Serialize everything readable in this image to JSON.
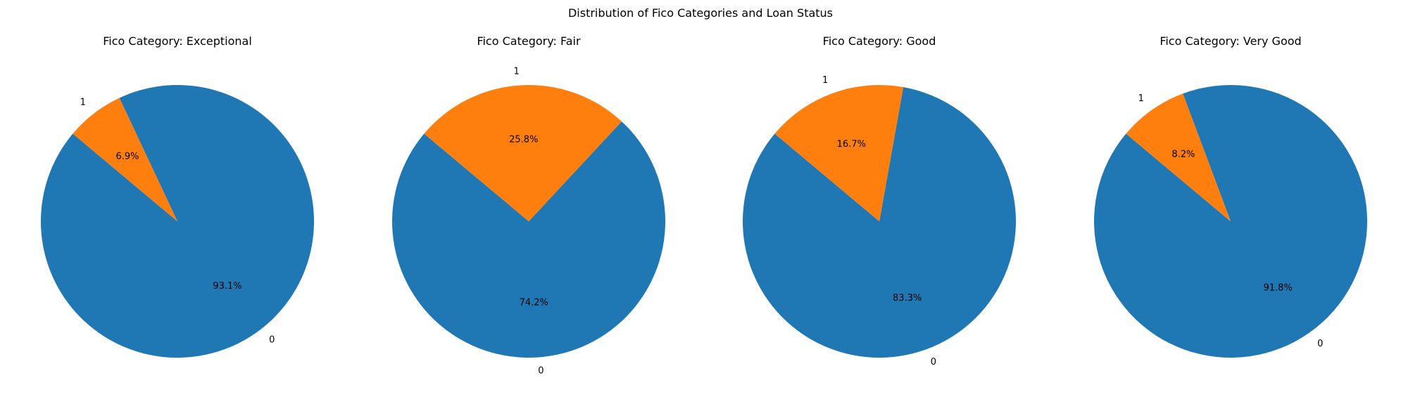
{
  "figure": {
    "suptitle": "Distribution of Fico Categories and Loan Status"
  },
  "chart_data": [
    {
      "type": "pie",
      "title": "Fico Category: Exceptional",
      "labels": [
        "0",
        "1"
      ],
      "values": [
        93.1,
        6.9
      ],
      "percent_labels": [
        "93.1%",
        "6.9%"
      ],
      "colors": [
        "#1f77b4",
        "#ff7f0e"
      ],
      "start_angle_deg": 140
    },
    {
      "type": "pie",
      "title": "Fico Category: Fair",
      "labels": [
        "0",
        "1"
      ],
      "values": [
        74.2,
        25.8
      ],
      "percent_labels": [
        "74.2%",
        "25.8%"
      ],
      "colors": [
        "#1f77b4",
        "#ff7f0e"
      ],
      "start_angle_deg": 140
    },
    {
      "type": "pie",
      "title": "Fico Category: Good",
      "labels": [
        "0",
        "1"
      ],
      "values": [
        83.3,
        16.7
      ],
      "percent_labels": [
        "83.3%",
        "16.7%"
      ],
      "colors": [
        "#1f77b4",
        "#ff7f0e"
      ],
      "start_angle_deg": 140
    },
    {
      "type": "pie",
      "title": "Fico Category: Very Good",
      "labels": [
        "0",
        "1"
      ],
      "values": [
        91.8,
        8.2
      ],
      "percent_labels": [
        "91.8%",
        "8.2%"
      ],
      "colors": [
        "#1f77b4",
        "#ff7f0e"
      ],
      "start_angle_deg": 140
    }
  ]
}
